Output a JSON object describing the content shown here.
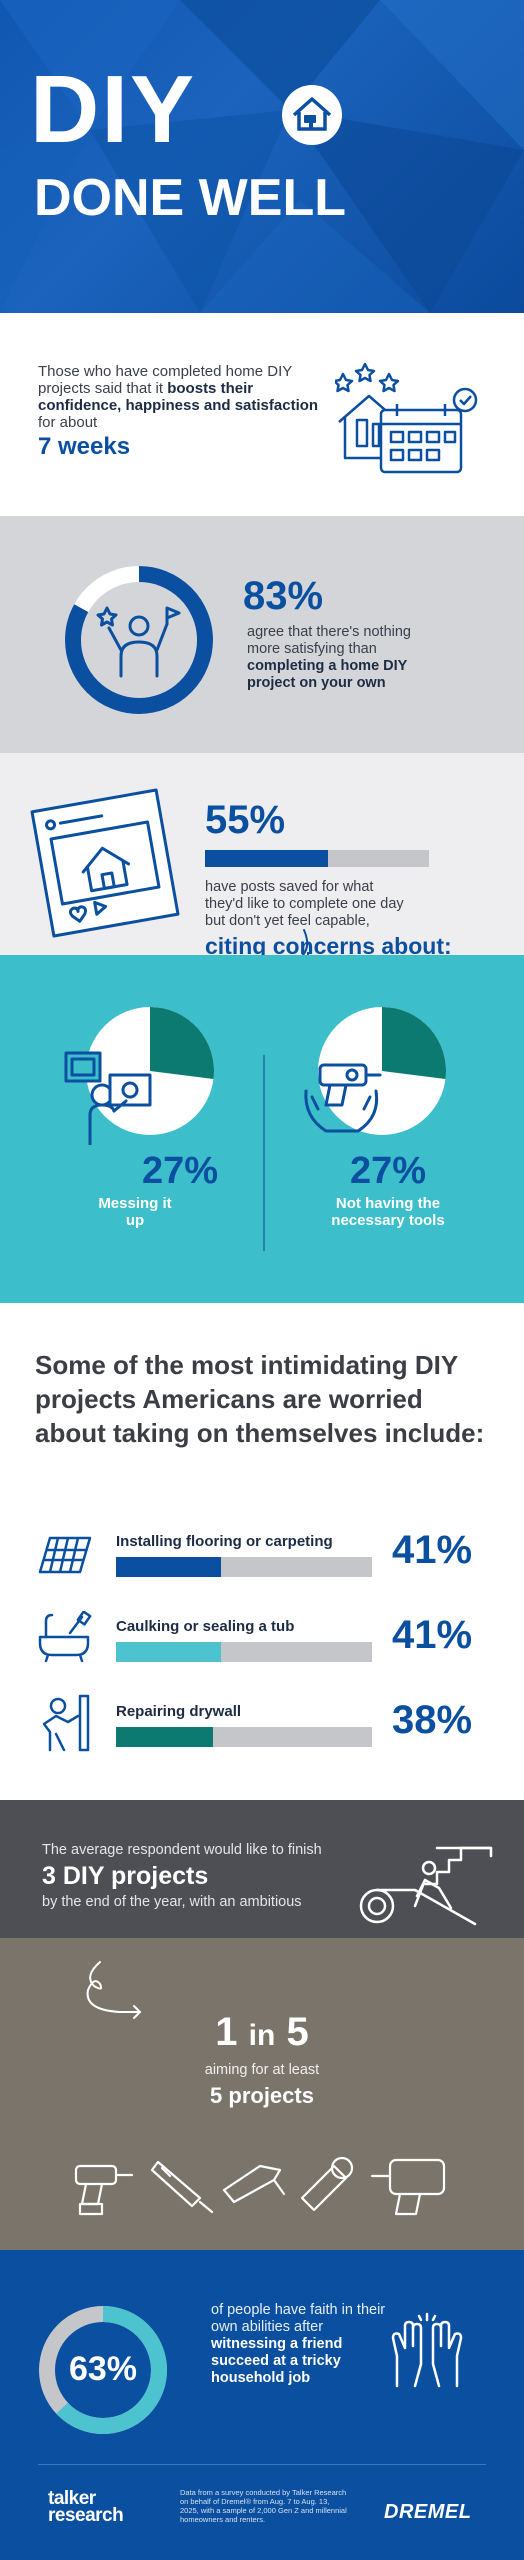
{
  "hero": {
    "title_line1": "DIY",
    "title_line2": "DONE WELL"
  },
  "intro": {
    "text_part1": "Those who have completed home DIY projects said that it ",
    "text_bold": "boosts their confidence, happiness and satisfaction",
    "text_part2": " for about",
    "highlight": "7 weeks"
  },
  "stat_83": {
    "value": 83,
    "percent": "83%",
    "text_part1": "agree that there's nothing more satisfying than ",
    "text_bold": "completing a home DIY project on your own"
  },
  "stat_55": {
    "value": 55,
    "percent": "55%",
    "text": "have posts saved for what they'd like to complete one day but don't yet feel capable,",
    "citing": "citing concerns about:"
  },
  "concerns": [
    {
      "value": 27,
      "percent": "27%",
      "label": "Messing it up"
    },
    {
      "value": 27,
      "percent": "27%",
      "label": "Not having the necessary tools"
    }
  ],
  "intimidating": {
    "heading": "Some of the most intimidating DIY projects Americans are worried about taking on themselves include:",
    "items": [
      {
        "name": "Installing flooring or carpeting",
        "value": 41,
        "percent": "41%",
        "color": "#0a4fa0",
        "icon": "flooring-icon"
      },
      {
        "name": "Caulking or sealing a tub",
        "value": 41,
        "percent": "41%",
        "color": "#4dc3cf",
        "icon": "bathtub-icon"
      },
      {
        "name": "Repairing drywall",
        "value": 38,
        "percent": "38%",
        "color": "#0c7a70",
        "icon": "drywall-icon"
      }
    ]
  },
  "finish": {
    "line1": "The average respondent would like to finish",
    "line2": "3 DIY projects",
    "line3": "by the end of the year, with an ambitious"
  },
  "ambitious": {
    "one": "1",
    "in": "in",
    "five": "5",
    "aim": "aiming for at least",
    "projects": "5 projects"
  },
  "faith": {
    "value": 63,
    "percent": "63%",
    "text_part1": "of people have faith in their own abilities after ",
    "text_bold": "witnessing a friend succeed at a tricky household job"
  },
  "footer": {
    "logo_left_line1": "talker",
    "logo_left_line2": "research",
    "note": "Data from a survey conducted by Talker Research on behalf of Dremel® from Aug. 7 to Aug. 13, 2025, with a sample of 2,000 Gen Z and millennial homeowners and renters.",
    "logo_right": "DREMEL"
  },
  "colors": {
    "brand_blue": "#0a4fa0",
    "teal": "#3cbfca",
    "dark_teal": "#0c7a70",
    "gray_bar": "#c5c6c9"
  }
}
